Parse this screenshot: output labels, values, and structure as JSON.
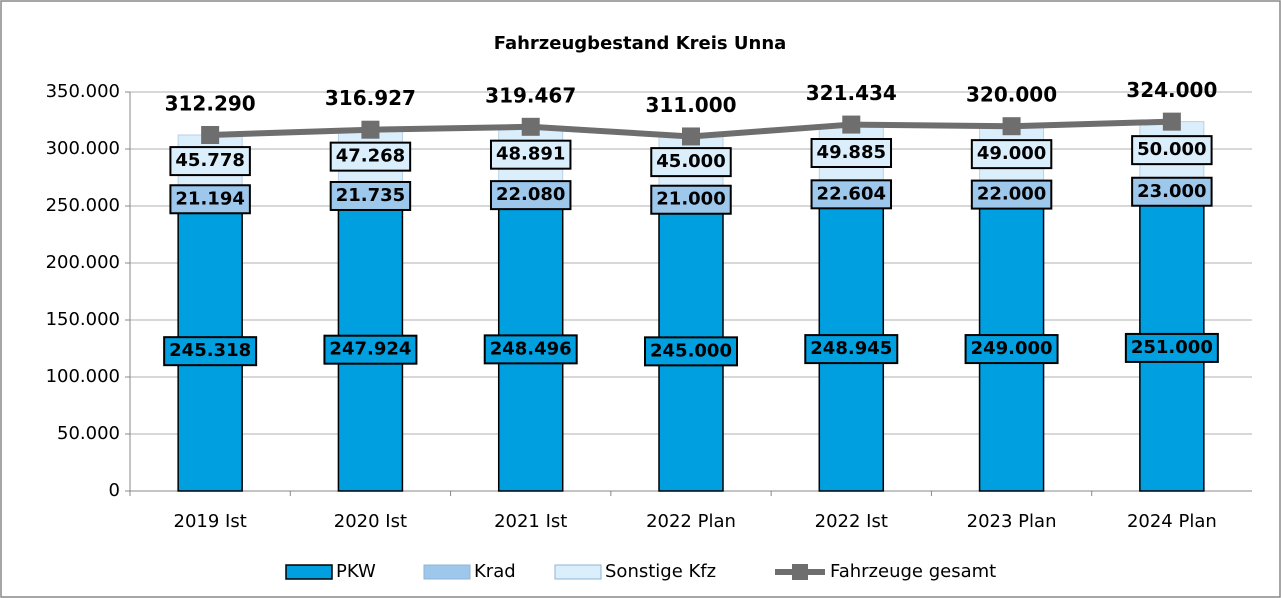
{
  "chart_data": {
    "type": "bar",
    "stacked": true,
    "title": "Fahrzeugbestand Kreis Unna",
    "categories": [
      "2019 Ist",
      "2020 Ist",
      "2021 Ist",
      "2022 Plan",
      "2022 Ist",
      "2023 Plan",
      "2024 Plan"
    ],
    "series": [
      {
        "name": "PKW",
        "color": "#009fdf",
        "values": [
          245318,
          247924,
          248496,
          245000,
          248945,
          249000,
          251000
        ],
        "value_labels": [
          "245.318",
          "247.924",
          "248.496",
          "245.000",
          "248.945",
          "249.000",
          "251.000"
        ]
      },
      {
        "name": "Krad",
        "color": "#9dc8ec",
        "values": [
          21194,
          21735,
          22080,
          21000,
          22604,
          22000,
          23000
        ],
        "value_labels": [
          "21.194",
          "21.735",
          "22.080",
          "21.000",
          "22.604",
          "22.000",
          "23.000"
        ]
      },
      {
        "name": "Sonstige Kfz",
        "color": "#dbeefb",
        "values": [
          45778,
          47268,
          48891,
          45000,
          49885,
          49000,
          50000
        ],
        "value_labels": [
          "45.778",
          "47.268",
          "48.891",
          "45.000",
          "49.885",
          "49.000",
          "50.000"
        ]
      },
      {
        "name": "Fahrzeuge gesamt",
        "type": "line",
        "color": "#6e6e6e",
        "values": [
          312290,
          316927,
          319467,
          311000,
          321434,
          320000,
          324000
        ],
        "value_labels": [
          "312.290",
          "316.927",
          "319.467",
          "311.000",
          "321.434",
          "320.000",
          "324.000"
        ]
      }
    ],
    "ylim": [
      0,
      350000
    ],
    "yticks": [
      0,
      {
        "value": 50000,
        "label": "50.000"
      },
      {
        "value": 100000,
        "label": "100.000"
      },
      {
        "value": 150000,
        "label": "150.000"
      },
      {
        "value": 200000,
        "label": "200.000"
      },
      {
        "value": 250000,
        "label": "250.000"
      },
      {
        "value": 300000,
        "label": "300.000"
      },
      {
        "value": 350000,
        "label": "350.000"
      }
    ],
    "grid": true,
    "legend": "bottom"
  }
}
